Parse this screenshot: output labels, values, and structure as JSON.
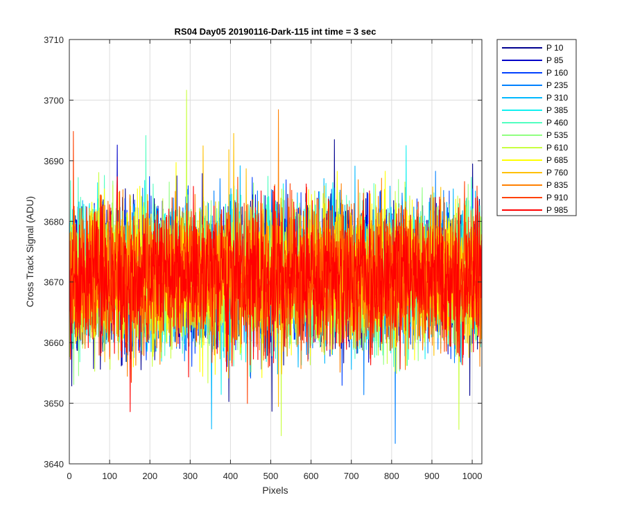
{
  "chart_data": {
    "type": "line",
    "title": "RS04 Day05 20190116-Dark-115 int time = 3 sec",
    "xlabel": "Pixels",
    "ylabel": "Cross Track Signal (ADU)",
    "xlim": [
      0,
      1024
    ],
    "ylim": [
      3640,
      3710
    ],
    "xticks": [
      0,
      100,
      200,
      300,
      400,
      500,
      600,
      700,
      800,
      900,
      1000
    ],
    "yticks": [
      3640,
      3650,
      3660,
      3670,
      3680,
      3690,
      3700,
      3710
    ],
    "grid": true,
    "legend_position": "outside-top-right",
    "series": [
      {
        "name": "P 10",
        "color": "#00008f",
        "mean": 3671,
        "spread": 11
      },
      {
        "name": "P 85",
        "color": "#0000c8",
        "mean": 3671,
        "spread": 11
      },
      {
        "name": "P 160",
        "color": "#0040ff",
        "mean": 3671,
        "spread": 11
      },
      {
        "name": "P 235",
        "color": "#0080ff",
        "mean": 3671,
        "spread": 11
      },
      {
        "name": "P 310",
        "color": "#00b8ff",
        "mean": 3671,
        "spread": 11
      },
      {
        "name": "P 385",
        "color": "#10f0f0",
        "mean": 3671,
        "spread": 11
      },
      {
        "name": "P 460",
        "color": "#50ffc0",
        "mean": 3671,
        "spread": 11
      },
      {
        "name": "P 535",
        "color": "#90ff80",
        "mean": 3671,
        "spread": 11
      },
      {
        "name": "P 610",
        "color": "#c8ff40",
        "mean": 3671,
        "spread": 11
      },
      {
        "name": "P 685",
        "color": "#ffff00",
        "mean": 3671,
        "spread": 11
      },
      {
        "name": "P 760",
        "color": "#ffc000",
        "mean": 3671,
        "spread": 11
      },
      {
        "name": "P 835",
        "color": "#ff8000",
        "mean": 3671,
        "spread": 11
      },
      {
        "name": "P 910",
        "color": "#ff4000",
        "mean": 3671,
        "spread": 11
      },
      {
        "name": "P 985",
        "color": "#ff0000",
        "mean": 3671,
        "spread": 11
      }
    ]
  }
}
